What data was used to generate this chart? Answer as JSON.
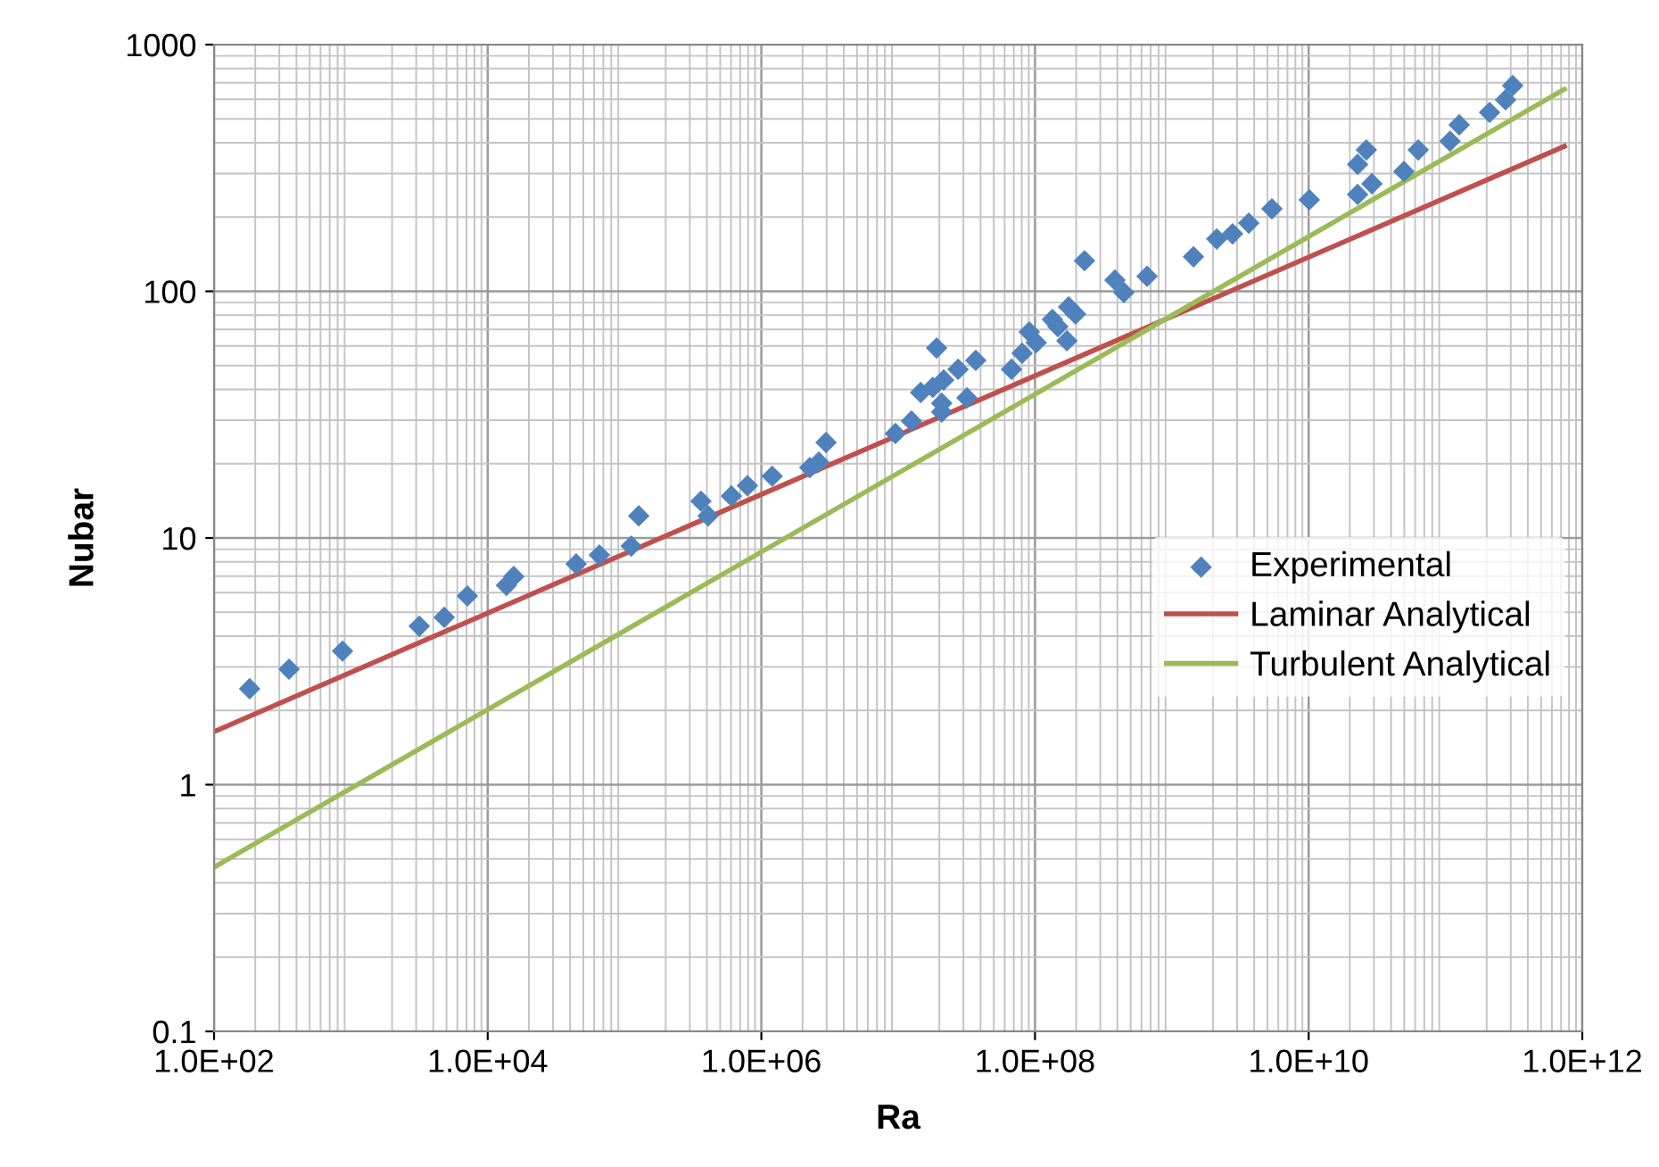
{
  "chart_data": {
    "type": "scatter",
    "xlabel": "Ra",
    "ylabel": "Nubar",
    "log": "xy",
    "grid": true,
    "legend": "right",
    "xlim": [
      100,
      1000000000000.0
    ],
    "ylim": [
      0.1,
      1000
    ],
    "xticks": [
      {
        "value": 100,
        "label": "1.0E+02"
      },
      {
        "value": 10000,
        "label": "1.0E+04"
      },
      {
        "value": 1000000,
        "label": "1.0E+06"
      },
      {
        "value": 100000000,
        "label": "1.0E+08"
      },
      {
        "value": 10000000000,
        "label": "1.0E+10"
      },
      {
        "value": 1000000000000,
        "label": "1.0E+12"
      }
    ],
    "yticks": [
      0.1,
      1,
      10,
      100,
      1000
    ],
    "series": [
      {
        "name": "Experimental",
        "marker": "diamond",
        "color": "#4f81bd",
        "x": [
          182,
          353,
          869,
          3160,
          4810,
          7100,
          13700,
          15500,
          44300,
          65500,
          112000,
          127000,
          362000,
          408000,
          604000,
          791000,
          1200000,
          2260000,
          2630000,
          2970000,
          9550000,
          12500000,
          14600000,
          19100000,
          17900000,
          21500000,
          20800000,
          20800000,
          27400000,
          31800000,
          36900000,
          67300000,
          80500000,
          90800000,
          102000000,
          134000000,
          147000000,
          176000000,
          198000000,
          171000000,
          230000000,
          384000000,
          446000000,
          659000000,
          1440000000,
          2130000000,
          2780000000,
          3650000000,
          5390000000,
          10100000000,
          22800000000,
          26400000000,
          22800000000,
          29000000000,
          49700000000,
          63200000000,
          108000000000,
          126000000000,
          210000000000,
          275000000000,
          310000000000
        ],
        "values": [
          2.45,
          2.94,
          3.48,
          4.39,
          4.77,
          5.82,
          6.43,
          6.98,
          7.85,
          8.53,
          9.27,
          12.3,
          14.1,
          12.3,
          14.8,
          16.3,
          17.8,
          19.3,
          20.3,
          24.4,
          26.5,
          29.8,
          38.9,
          58.9,
          40.8,
          43.7,
          35.2,
          32.4,
          48.3,
          37.0,
          52.5,
          48.3,
          56.1,
          68.4,
          61.9,
          76.9,
          71.9,
          86.5,
          80.9,
          63.0,
          133,
          111,
          98.8,
          115,
          138,
          163,
          171,
          189,
          216,
          235,
          327,
          374,
          247,
          273,
          306,
          374,
          406,
          473,
          531,
          597,
          682
        ]
      },
      {
        "name": "Laminar Analytical",
        "type": "line",
        "marker": "none",
        "color": "#c0504d",
        "x": [
          100,
          740000000000
        ],
        "values": [
          1.64,
          387
        ]
      },
      {
        "name": "Turbulent Analytical",
        "type": "line",
        "marker": "none",
        "color": "#9bbb59",
        "x": [
          100,
          740000000000
        ],
        "values": [
          0.463,
          659
        ]
      }
    ]
  }
}
